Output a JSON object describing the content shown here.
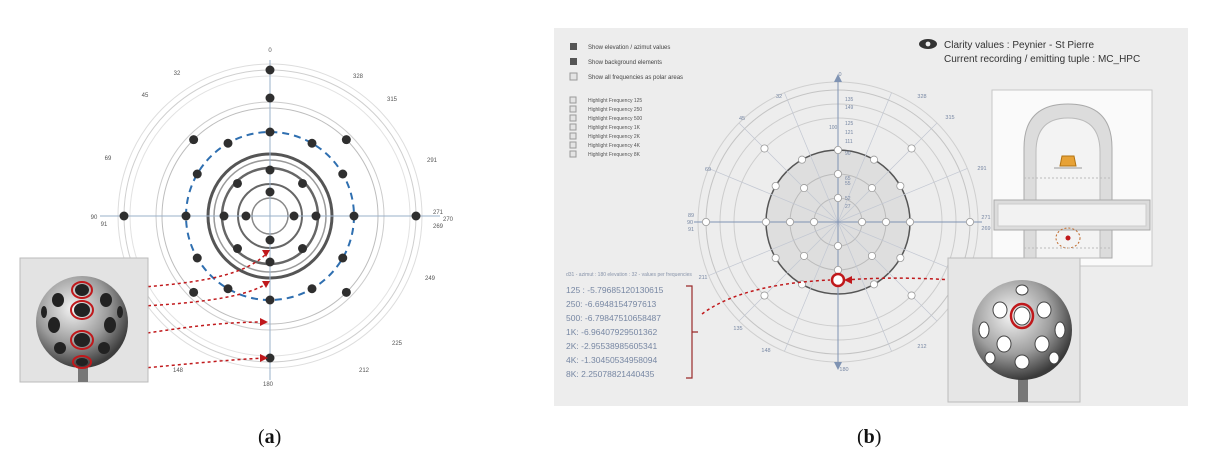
{
  "captions": {
    "a": "a",
    "b": "b"
  },
  "panel_a": {
    "tick_labels": {
      "top": "0",
      "bottom": "180",
      "left": "90",
      "left2": "91",
      "right": "271",
      "right2": "270",
      "right3": "269",
      "ul1": "32",
      "ul2": "45",
      "ul3": "69",
      "ur1": "328",
      "ur2": "315",
      "ur3": "291",
      "lr1": "249",
      "lr2": "225",
      "lr3": "212",
      "ll1": "148"
    }
  },
  "panel_b": {
    "options": [
      "Show elevation / azimut values",
      "Show background elements",
      "Show all frequencies as polar areas"
    ],
    "highlights": [
      "Highlight Frequency 125",
      "Highlight Frequency 250",
      "Highlight Frequency 500",
      "Highlight Frequency 1K",
      "Highlight Frequency 2K",
      "Highlight Frequency 4K",
      "Highlight Frequency 8K"
    ],
    "title_line1": "Clarity values : Peynier - St Pierre",
    "title_line2": "Current recording / emitting tuple : MC_HPC",
    "values_header": "d31 - azimut : 180 elevation : 32 - values per frequencies",
    "values": [
      "125 : -5.79685120130615",
      "250: -6.6948154797613",
      "500: -6.79847510658487",
      "1K: -6.96407929501362",
      "2K: -2.95538985605341",
      "4K: -1.30450534958094",
      "8K: 2.25078821440435"
    ],
    "tick_labels": {
      "top": "0",
      "bottom": "180",
      "ul1": "32",
      "ul2": "45",
      "ul3": "69",
      "ur1": "328",
      "ur2": "315",
      "ur3": "291",
      "l1": "89",
      "l2": "90",
      "l3": "91",
      "r1": "271",
      "r2": "269",
      "ll1": "211",
      "ll2": "135",
      "ll3": "148",
      "lr1": "222",
      "lr2": "212",
      "e1": "135",
      "e2": "149",
      "e3": "125",
      "e4": "121",
      "e5": "111",
      "e6": "100",
      "e7": "90",
      "e8": "65",
      "e9": "55",
      "e10": "52",
      "e11": "27"
    }
  }
}
